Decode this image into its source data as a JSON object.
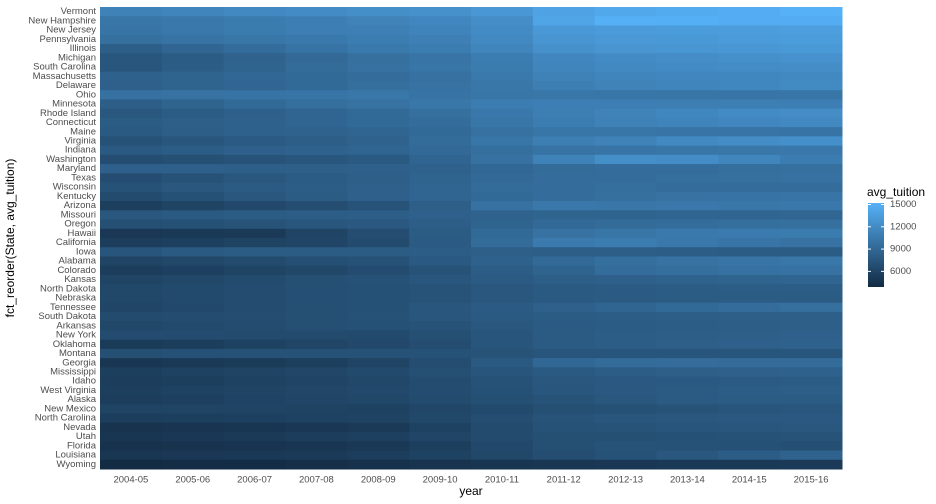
{
  "chart_data": {
    "type": "heatmap",
    "x_label": "year",
    "y_label": "fct_reorder(State, avg_tuition)",
    "x": [
      "2004-05",
      "2005-06",
      "2006-07",
      "2007-08",
      "2008-09",
      "2009-10",
      "2010-11",
      "2011-12",
      "2012-13",
      "2013-14",
      "2014-15",
      "2015-16"
    ],
    "categories": [
      "Vermont",
      "New Hampshire",
      "New Jersey",
      "Pennsylvania",
      "Illinois",
      "Michigan",
      "South Carolina",
      "Massachusetts",
      "Delaware",
      "Ohio",
      "Minnesota",
      "Rhode Island",
      "Connecticut",
      "Maine",
      "Virginia",
      "Indiana",
      "Washington",
      "Maryland",
      "Texas",
      "Wisconsin",
      "Kentucky",
      "Arizona",
      "Missouri",
      "Oregon",
      "Hawaii",
      "California",
      "Iowa",
      "Alabama",
      "Colorado",
      "Kansas",
      "North Dakota",
      "Nebraska",
      "Tennessee",
      "South Dakota",
      "Arkansas",
      "New York",
      "Oklahoma",
      "Montana",
      "Georgia",
      "Mississippi",
      "Idaho",
      "West Virginia",
      "Alaska",
      "New Mexico",
      "North Carolina",
      "Nevada",
      "Utah",
      "Florida",
      "Louisiana",
      "Wyoming"
    ],
    "values": [
      [
        11200,
        11500,
        11800,
        12000,
        12300,
        12500,
        13000,
        14000,
        14400,
        14700,
        14900,
        15200
      ],
      [
        10200,
        10400,
        10700,
        11000,
        11300,
        11600,
        12200,
        14200,
        15100,
        15000,
        14800,
        14900
      ],
      [
        10100,
        10400,
        10700,
        10900,
        11100,
        11400,
        12000,
        13100,
        13300,
        13400,
        13500,
        13600
      ],
      [
        9700,
        10000,
        10300,
        10500,
        10800,
        11100,
        11800,
        12800,
        13100,
        13200,
        13300,
        13400
      ],
      [
        8200,
        8900,
        9500,
        10000,
        10500,
        10800,
        11500,
        12500,
        12800,
        12900,
        13000,
        13200
      ],
      [
        7500,
        8000,
        8600,
        9100,
        9700,
        10100,
        10800,
        11600,
        12000,
        12200,
        12400,
        12600
      ],
      [
        7500,
        8100,
        8700,
        9300,
        9800,
        10200,
        10700,
        11500,
        11800,
        12000,
        12100,
        12200
      ],
      [
        8500,
        8700,
        9000,
        9200,
        9500,
        9800,
        10500,
        11200,
        11500,
        11600,
        11700,
        11800
      ],
      [
        8400,
        8700,
        8900,
        9200,
        9600,
        9900,
        10300,
        10900,
        11300,
        11500,
        11700,
        11900
      ],
      [
        9800,
        9900,
        10000,
        10100,
        10300,
        10000,
        10200,
        10300,
        10200,
        10200,
        10100,
        10200
      ],
      [
        8200,
        8700,
        9200,
        9600,
        9900,
        10300,
        10800,
        11000,
        11000,
        10900,
        10900,
        11000
      ],
      [
        7600,
        8000,
        8400,
        8800,
        9200,
        9700,
        10400,
        10900,
        11300,
        11700,
        12000,
        12200
      ],
      [
        8000,
        8300,
        8500,
        8800,
        9200,
        9500,
        10200,
        10800,
        11200,
        11400,
        11600,
        11800
      ],
      [
        7800,
        8200,
        8500,
        8600,
        8800,
        9200,
        9800,
        10200,
        10200,
        10100,
        10100,
        10000
      ],
      [
        7200,
        7500,
        7900,
        8200,
        8600,
        9300,
        10200,
        10900,
        11300,
        11800,
        12100,
        12400
      ],
      [
        7800,
        8100,
        8400,
        8600,
        8800,
        9100,
        9600,
        10000,
        10100,
        10200,
        10300,
        10400
      ],
      [
        6800,
        7000,
        7300,
        7500,
        7800,
        8800,
        9800,
        11200,
        12300,
        12100,
        11500,
        10800
      ],
      [
        8400,
        8400,
        8300,
        8300,
        8400,
        8500,
        9000,
        9300,
        9400,
        9500,
        9600,
        9700
      ],
      [
        6800,
        7200,
        7600,
        8000,
        8300,
        8700,
        9100,
        9400,
        9500,
        9600,
        9700,
        9800
      ],
      [
        7200,
        7600,
        7900,
        8100,
        8400,
        8800,
        9300,
        9500,
        9600,
        9500,
        9400,
        9500
      ],
      [
        6600,
        7100,
        7600,
        8000,
        8400,
        8800,
        9200,
        9500,
        9700,
        9900,
        10000,
        10100
      ],
      [
        5600,
        6000,
        6400,
        6800,
        7300,
        8300,
        9800,
        10400,
        10300,
        10400,
        10300,
        10400
      ],
      [
        7600,
        7800,
        8000,
        8100,
        8200,
        8400,
        8600,
        8700,
        8700,
        8800,
        8800,
        8900
      ],
      [
        6900,
        7100,
        7300,
        7500,
        7700,
        8200,
        8700,
        9100,
        9300,
        9500,
        9600,
        9700
      ],
      [
        5000,
        5100,
        5200,
        6000,
        6800,
        8000,
        9200,
        9900,
        10200,
        10500,
        10600,
        10700
      ],
      [
        5500,
        5700,
        5900,
        6100,
        6600,
        7900,
        9300,
        10600,
        10800,
        10400,
        10100,
        9900
      ],
      [
        7400,
        7800,
        8000,
        8000,
        8000,
        8100,
        8300,
        8200,
        8200,
        8100,
        8000,
        8000
      ],
      [
        6000,
        6300,
        6600,
        6900,
        7200,
        7800,
        8500,
        9200,
        9600,
        9900,
        10100,
        10300
      ],
      [
        5500,
        5700,
        6000,
        6300,
        6700,
        7300,
        8100,
        8700,
        9400,
        9600,
        9800,
        9900
      ],
      [
        6000,
        6300,
        6600,
        6900,
        7200,
        7500,
        7900,
        8200,
        8400,
        8600,
        8700,
        8800
      ],
      [
        6300,
        6500,
        6700,
        6900,
        7100,
        7300,
        7600,
        7800,
        7900,
        8000,
        8100,
        8100
      ],
      [
        6300,
        6500,
        6700,
        6900,
        7100,
        7300,
        7600,
        7800,
        7900,
        8000,
        8000,
        8000
      ],
      [
        6100,
        6400,
        6700,
        6900,
        7100,
        7500,
        7900,
        8400,
        8800,
        9200,
        9500,
        9700
      ],
      [
        6600,
        6700,
        6800,
        7000,
        7200,
        7500,
        7800,
        8000,
        8100,
        8200,
        8300,
        8300
      ],
      [
        6300,
        6500,
        6700,
        6900,
        7100,
        7300,
        7600,
        7900,
        8000,
        8100,
        8200,
        8300
      ],
      [
        6700,
        6700,
        6600,
        6600,
        6500,
        6900,
        7400,
        7900,
        8100,
        8200,
        8300,
        8400
      ],
      [
        5300,
        5500,
        5800,
        6100,
        6400,
        6800,
        7400,
        7900,
        8100,
        8300,
        8400,
        8500
      ],
      [
        7000,
        7100,
        7200,
        7200,
        7200,
        7200,
        7300,
        7400,
        7400,
        7400,
        7400,
        7400
      ],
      [
        4900,
        5100,
        5300,
        5600,
        6000,
        6800,
        7800,
        9000,
        9300,
        9400,
        9300,
        9300
      ],
      [
        5600,
        5800,
        6000,
        6200,
        6500,
        6900,
        7400,
        7800,
        8100,
        8300,
        8400,
        8500
      ],
      [
        5400,
        5600,
        5800,
        6000,
        6300,
        6700,
        7200,
        7600,
        7700,
        7800,
        7900,
        8000
      ],
      [
        5600,
        5800,
        6000,
        6200,
        6400,
        6700,
        7100,
        7500,
        7700,
        7900,
        8100,
        8200
      ],
      [
        5500,
        5700,
        5900,
        6100,
        6300,
        6600,
        7000,
        7300,
        7600,
        7900,
        8000,
        8000
      ],
      [
        6000,
        6000,
        6000,
        5900,
        5800,
        6200,
        6500,
        6900,
        7100,
        7300,
        7400,
        7500
      ],
      [
        5500,
        5600,
        5700,
        5800,
        5900,
        6300,
        6800,
        7300,
        7500,
        7600,
        7700,
        7700
      ],
      [
        4600,
        4700,
        4800,
        5000,
        5200,
        5800,
        6600,
        7200,
        7300,
        7400,
        7500,
        7600
      ],
      [
        4800,
        5000,
        5200,
        5400,
        5700,
        6100,
        6600,
        6900,
        7000,
        7100,
        7200,
        7300
      ],
      [
        4500,
        4600,
        4700,
        4800,
        5100,
        5600,
        6400,
        7000,
        7300,
        7200,
        7100,
        7000
      ],
      [
        4900,
        5000,
        5100,
        5200,
        5400,
        5800,
        6300,
        6800,
        7200,
        7600,
        8100,
        8600
      ],
      [
        3900,
        4000,
        4100,
        4200,
        4400,
        4600,
        4800,
        4900,
        5000,
        5100,
        5100,
        5200
      ]
    ],
    "colors": {
      "low": "#132B43",
      "high": "#56B1F7"
    },
    "legend": {
      "title": "avg_tuition",
      "ticks": [
        6000,
        9000,
        12000,
        15000
      ]
    }
  }
}
